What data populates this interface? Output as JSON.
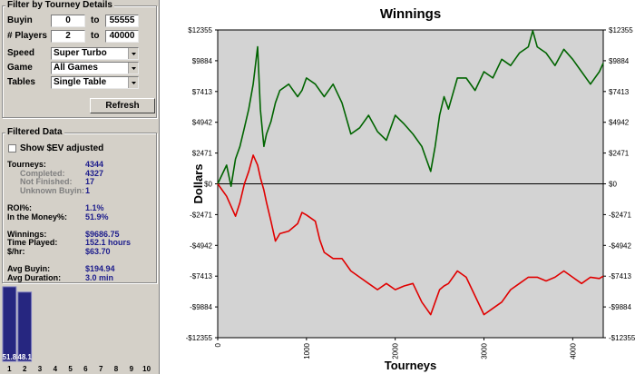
{
  "filter_panel": {
    "title": "Filter by Tourney Details",
    "ranges": [
      {
        "label": "Buyin",
        "from": "0",
        "to_text": "to",
        "to": "55555"
      },
      {
        "label": "# Players",
        "from": "2",
        "to_text": "to",
        "to": "40000"
      }
    ],
    "selects": [
      {
        "label": "Speed",
        "value": "Super Turbo"
      },
      {
        "label": "Game",
        "value": "All Games"
      },
      {
        "label": "Tables",
        "value": "Single Table"
      }
    ],
    "button": "Refresh"
  },
  "filtered_data": {
    "title": "Filtered Data",
    "checkbox": "Show $EV adjusted",
    "groups": [
      [
        {
          "label": "Tourneys:",
          "value": "4344",
          "sub": false
        },
        {
          "label": "Completed:",
          "value": "4327",
          "sub": true
        },
        {
          "label": "Not Finished:",
          "value": "17",
          "sub": true
        },
        {
          "label": "Unknown Buyin:",
          "value": "1",
          "sub": true
        }
      ],
      [
        {
          "label": "ROI%:",
          "value": "1.1%",
          "sub": false
        },
        {
          "label": "In the Money%:",
          "value": "51.9%",
          "sub": false
        }
      ],
      [
        {
          "label": "Winnings:",
          "value": "$9686.75",
          "sub": false
        },
        {
          "label": "Time Played:",
          "value": "152.1 hours",
          "sub": false
        },
        {
          "label": "$/hr:",
          "value": "$63.70",
          "sub": false
        }
      ],
      [
        {
          "label": "Avg Buyin:",
          "value": "$194.94",
          "sub": false
        },
        {
          "label": "Avg Duration:",
          "value": "3.0 min",
          "sub": false
        }
      ]
    ]
  },
  "chart_data": [
    {
      "type": "line",
      "title": "Winnings",
      "x_label": "Tourneys",
      "y_label": "Dollars",
      "x": [
        0,
        100,
        150,
        200,
        250,
        300,
        350,
        400,
        450,
        480,
        520,
        550,
        600,
        650,
        700,
        800,
        900,
        950,
        1000,
        1100,
        1150,
        1200,
        1300,
        1400,
        1500,
        1600,
        1700,
        1800,
        1900,
        2000,
        2100,
        2200,
        2300,
        2350,
        2400,
        2450,
        2500,
        2550,
        2600,
        2700,
        2800,
        2900,
        3000,
        3100,
        3200,
        3300,
        3400,
        3500,
        3550,
        3600,
        3700,
        3800,
        3900,
        4000,
        4100,
        4200,
        4300,
        4344
      ],
      "series": [
        {
          "color": "#006400",
          "values": [
            0,
            1500,
            -200,
            2000,
            3000,
            4500,
            6000,
            8000,
            11000,
            6000,
            3000,
            4000,
            5000,
            6500,
            7500,
            8000,
            7000,
            7500,
            8500,
            8000,
            7500,
            7000,
            8000,
            6500,
            4000,
            4500,
            5500,
            4200,
            3500,
            5500,
            4800,
            4000,
            3000,
            2000,
            1000,
            3000,
            5500,
            7000,
            6000,
            8500,
            8500,
            7500,
            9000,
            8500,
            10000,
            9500,
            10500,
            11000,
            12300,
            11000,
            10500,
            9500,
            10800,
            10000,
            9000,
            8000,
            9000,
            9687
          ]
        },
        {
          "color": "#e00000",
          "values": [
            0,
            -1000,
            -1800,
            -2600,
            -1500,
            0,
            1000,
            2300,
            1500,
            500,
            -500,
            -1500,
            -3000,
            -4600,
            -4000,
            -3800,
            -3200,
            -2300,
            -2500,
            -3000,
            -4500,
            -5500,
            -6000,
            -6000,
            -7000,
            -7500,
            -8000,
            -8500,
            -8000,
            -8500,
            -8200,
            -8000,
            -9500,
            -10000,
            -10500,
            -9500,
            -8500,
            -8200,
            -8000,
            -7000,
            -7500,
            -9000,
            -10500,
            -10000,
            -9500,
            -8500,
            -8000,
            -7500,
            -7500,
            -7500,
            -7800,
            -7500,
            -7000,
            -7500,
            -8000,
            -7500,
            -7600,
            -7413
          ]
        }
      ],
      "xlim": [
        0,
        4344
      ],
      "xticks": [
        0,
        1000,
        2000,
        3000,
        4000
      ],
      "ylim": [
        -12355,
        12355
      ],
      "yticks": [
        {
          "value": -12355,
          "label": "-$12355"
        },
        {
          "value": -9884,
          "label": "-$9884"
        },
        {
          "value": -7413,
          "label": "-$7413"
        },
        {
          "value": -4942,
          "label": "-$4942"
        },
        {
          "value": -2471,
          "label": "-$2471"
        },
        {
          "value": 0,
          "label": "$0"
        },
        {
          "value": 2471,
          "label": "$2471"
        },
        {
          "value": 4942,
          "label": "$4942"
        },
        {
          "value": 7413,
          "label": "$7413"
        },
        {
          "value": 9884,
          "label": "$9884"
        },
        {
          "value": 12355,
          "label": "$12355"
        }
      ],
      "zero_line": true,
      "right_axis_labels": true,
      "plot_background": "#d3d3d3"
    },
    {
      "type": "bar",
      "categories": [
        "1",
        "2",
        "3",
        "4",
        "5",
        "6",
        "7",
        "8",
        "9",
        "10"
      ],
      "values": [
        51.8,
        48.1,
        null,
        null,
        null,
        null,
        null,
        null,
        null,
        null
      ],
      "color": "#262680",
      "ylim": [
        0,
        53
      ]
    }
  ]
}
